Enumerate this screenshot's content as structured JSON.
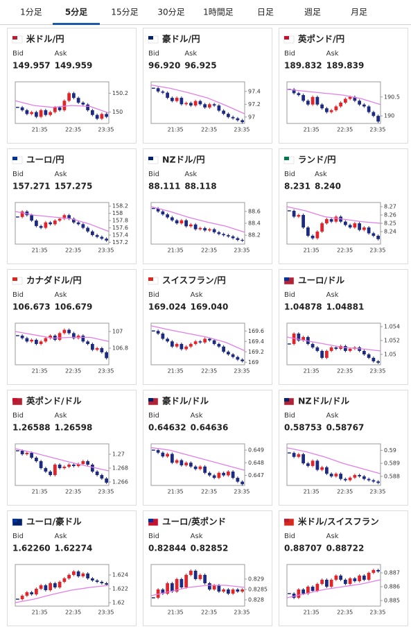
{
  "tabs": {
    "items": [
      "1分足",
      "5分足",
      "15分足",
      "30分足",
      "1時間足",
      "日足",
      "週足",
      "月足"
    ],
    "active": 1
  },
  "labels": {
    "bid": "Bid",
    "ask": "Ask"
  },
  "colors": {
    "up": "#e0252b",
    "down": "#1c2a80",
    "ma": "#e27ee8",
    "tab_active": "#1a5aa6"
  },
  "cards": [
    {
      "name": "米ドル/円",
      "color": "#6b2c91",
      "flag": [
        "#b22234",
        "#ffffff"
      ],
      "bid": "149.957",
      "ask": "149.959",
      "xlabels": [
        "21:35",
        "22:35",
        "23:35"
      ],
      "ylim": [
        149.88,
        150.32
      ],
      "yticks": [
        150,
        150.2
      ],
      "closes": [
        150.05,
        150.02,
        149.98,
        150.0,
        149.95,
        150.02,
        149.97,
        150.0,
        150.05,
        150.02,
        150.12,
        150.2,
        150.15,
        150.1,
        150.08,
        150.02,
        149.97,
        149.93,
        149.98,
        149.95
      ],
      "ma": [
        150.12,
        150.07,
        150.05,
        150.07,
        150.06,
        149.99
      ]
    },
    {
      "name": "豪ドル/円",
      "color": "#6b2c91",
      "flag": [
        "#012169",
        "#ffffff"
      ],
      "bid": "96.920",
      "ask": "96.925",
      "xlabels": [
        "21:35",
        "22:35",
        "23:35"
      ],
      "ylim": [
        96.9,
        97.55
      ],
      "yticks": [
        97,
        97.2,
        97.4
      ],
      "closes": [
        97.45,
        97.4,
        97.38,
        97.3,
        97.25,
        97.3,
        97.2,
        97.22,
        97.18,
        97.25,
        97.2,
        97.15,
        97.2,
        97.18,
        97.1,
        97.05,
        97.0,
        96.98,
        96.95,
        96.92
      ],
      "ma": [
        97.5,
        97.45,
        97.38,
        97.3,
        97.18,
        97.05
      ]
    },
    {
      "name": "英ポンド/円",
      "color": "#6b2c91",
      "flag": [
        "#c8102e",
        "#ffffff"
      ],
      "bid": "189.832",
      "ask": "189.839",
      "xlabels": [
        "21:35",
        "22:35",
        "23:35"
      ],
      "ylim": [
        189.8,
        190.9
      ],
      "yticks": [
        190,
        190.5
      ],
      "closes": [
        190.7,
        190.6,
        190.55,
        190.4,
        190.3,
        190.5,
        190.3,
        190.2,
        190.1,
        190.15,
        190.25,
        190.35,
        190.45,
        190.5,
        190.4,
        190.3,
        190.25,
        190.1,
        190.0,
        189.85
      ],
      "ma": [
        190.7,
        190.65,
        190.6,
        190.55,
        190.45,
        190.3
      ]
    },
    {
      "name": "ユーロ/円",
      "color": "#6b2c91",
      "flag": [
        "#003399",
        "#ffffff"
      ],
      "bid": "157.271",
      "ask": "157.275",
      "xlabels": [
        "21:35",
        "22:35",
        "23:35"
      ],
      "ylim": [
        157.15,
        158.3
      ],
      "yticks": [
        157.2,
        157.4,
        157.6,
        157.8,
        158,
        158.2
      ],
      "closes": [
        157.9,
        158.05,
        157.95,
        157.8,
        157.65,
        157.6,
        157.75,
        157.7,
        157.8,
        157.85,
        157.95,
        157.85,
        157.75,
        157.7,
        157.6,
        157.5,
        157.4,
        157.35,
        157.3,
        157.25
      ],
      "ma": [
        158.05,
        157.95,
        157.9,
        157.85,
        157.7,
        157.5
      ]
    },
    {
      "name": "NZドル/円",
      "color": "#6b2c91",
      "flag": [
        "#012169",
        "#ffffff"
      ],
      "bid": "88.111",
      "ask": "88.118",
      "xlabels": [
        "21:35",
        "22:35",
        "23:35"
      ],
      "ylim": [
        88.05,
        88.75
      ],
      "yticks": [
        88.2,
        88.4,
        88.6
      ],
      "closes": [
        88.65,
        88.6,
        88.55,
        88.5,
        88.45,
        88.4,
        88.45,
        88.35,
        88.38,
        88.3,
        88.32,
        88.28,
        88.3,
        88.25,
        88.22,
        88.2,
        88.18,
        88.15,
        88.12,
        88.11
      ],
      "ma": [
        88.68,
        88.6,
        88.5,
        88.42,
        88.35,
        88.25
      ]
    },
    {
      "name": "ランド/円",
      "color": "#6b2c91",
      "flag": [
        "#007a4d",
        "#ffffff"
      ],
      "bid": "8.231",
      "ask": "8.240",
      "xlabels": [
        "21:35",
        "22:35",
        "23:35"
      ],
      "ylim": [
        8.225,
        8.275
      ],
      "yticks": [
        8.24,
        8.25,
        8.26,
        8.27
      ],
      "closes": [
        8.265,
        8.258,
        8.26,
        8.245,
        8.235,
        8.232,
        8.24,
        8.25,
        8.255,
        8.252,
        8.258,
        8.252,
        8.248,
        8.245,
        8.25,
        8.242,
        8.245,
        8.238,
        8.235,
        8.231
      ],
      "ma": [
        8.27,
        8.265,
        8.258,
        8.255,
        8.252,
        8.25
      ]
    },
    {
      "name": "カナダドル/円",
      "color": "#6b2c91",
      "flag": [
        "#d52b1e",
        "#ffffff"
      ],
      "bid": "106.673",
      "ask": "106.679",
      "xlabels": [
        "21:35",
        "22:35",
        "23:35"
      ],
      "ylim": [
        106.6,
        107.1
      ],
      "yticks": [
        106.8,
        107
      ],
      "closes": [
        106.95,
        106.92,
        106.88,
        106.9,
        106.85,
        106.88,
        106.92,
        106.95,
        106.9,
        106.98,
        107.02,
        106.98,
        106.92,
        106.95,
        106.88,
        106.85,
        106.78,
        106.8,
        106.75,
        106.68
      ],
      "ma": [
        107.0,
        106.96,
        106.92,
        106.93,
        106.93,
        106.88
      ]
    },
    {
      "name": "スイスフラン/円",
      "color": "#6b2c91",
      "flag": [
        "#da291c",
        "#ffffff"
      ],
      "bid": "169.024",
      "ask": "169.040",
      "xlabels": [
        "21:35",
        "22:35",
        "23:35"
      ],
      "ylim": [
        168.95,
        169.75
      ],
      "yticks": [
        169,
        169.2,
        169.4,
        169.6
      ],
      "closes": [
        169.6,
        169.55,
        169.45,
        169.4,
        169.3,
        169.35,
        169.25,
        169.3,
        169.35,
        169.4,
        169.38,
        169.45,
        169.42,
        169.35,
        169.3,
        169.2,
        169.15,
        169.1,
        169.05,
        169.02
      ],
      "ma": [
        169.7,
        169.62,
        169.55,
        169.48,
        169.38,
        169.22
      ]
    },
    {
      "name": "ユーロ/ドル",
      "color": "#3b3a8f",
      "flag": [
        "#003399",
        "#b22234"
      ],
      "bid": "1.04878",
      "ask": "1.04881",
      "xlabels": [
        "21:35",
        "22:35",
        "23:35"
      ],
      "ylim": [
        1.0485,
        1.0545
      ],
      "yticks": [
        1.05,
        1.052,
        1.054
      ],
      "closes": [
        1.0515,
        1.053,
        1.052,
        1.0525,
        1.0515,
        1.051,
        1.0505,
        1.0495,
        1.0505,
        1.051,
        1.0508,
        1.0512,
        1.0505,
        1.0508,
        1.051,
        1.0505,
        1.05,
        1.0495,
        1.049,
        1.0488
      ],
      "ma": [
        1.0525,
        1.052,
        1.0515,
        1.051,
        1.0508,
        1.0505
      ]
    },
    {
      "name": "英ポンド/ドル",
      "color": "#3b3a8f",
      "flag": [
        "#c8102e",
        "#b22234"
      ],
      "bid": "1.26588",
      "ask": "1.26598",
      "xlabels": [
        "21:35",
        "22:35",
        "23:35"
      ],
      "ylim": [
        1.2655,
        1.2715
      ],
      "yticks": [
        1.266,
        1.268,
        1.27
      ],
      "closes": [
        1.2705,
        1.27,
        1.2702,
        1.2695,
        1.269,
        1.268,
        1.2675,
        1.267,
        1.2685,
        1.268,
        1.2682,
        1.2685,
        1.2683,
        1.2686,
        1.269,
        1.2685,
        1.2675,
        1.267,
        1.2665,
        1.2659
      ],
      "ma": [
        1.2708,
        1.2702,
        1.2695,
        1.2688,
        1.2682,
        1.2676
      ]
    },
    {
      "name": "豪ドル/ドル",
      "color": "#3b3a8f",
      "flag": [
        "#012169",
        "#b22234"
      ],
      "bid": "0.64632",
      "ask": "0.64636",
      "xlabels": [
        "21:35",
        "22:35",
        "23:35"
      ],
      "ylim": [
        0.6462,
        0.6495
      ],
      "yticks": [
        0.647,
        0.648,
        0.649
      ],
      "closes": [
        0.649,
        0.6488,
        0.6485,
        0.6487,
        0.648,
        0.6482,
        0.6478,
        0.648,
        0.6477,
        0.6475,
        0.6477,
        0.6472,
        0.647,
        0.6468,
        0.6472,
        0.647,
        0.6473,
        0.6468,
        0.6465,
        0.6463
      ],
      "ma": [
        0.6492,
        0.649,
        0.6486,
        0.6482,
        0.6478,
        0.6474
      ]
    },
    {
      "name": "NZドル/ドル",
      "color": "#3b3a8f",
      "flag": [
        "#012169",
        "#b22234"
      ],
      "bid": "0.58753",
      "ask": "0.58767",
      "xlabels": [
        "21:35",
        "22:35",
        "23:35"
      ],
      "ylim": [
        0.5873,
        0.5905
      ],
      "yticks": [
        0.588,
        0.589,
        0.59
      ],
      "closes": [
        0.5898,
        0.5895,
        0.5897,
        0.589,
        0.5888,
        0.5892,
        0.5885,
        0.5887,
        0.5882,
        0.588,
        0.5882,
        0.5878,
        0.5877,
        0.5879,
        0.5881,
        0.588,
        0.5878,
        0.5877,
        0.5876,
        0.5875
      ],
      "ma": [
        0.5902,
        0.5899,
        0.5895,
        0.589,
        0.5886,
        0.5882
      ]
    },
    {
      "name": "ユーロ/豪ドル",
      "color": "#1a5aa6",
      "flag": [
        "#003399",
        "#012169"
      ],
      "bid": "1.62260",
      "ask": "1.62274",
      "xlabels": [
        "21:35",
        "22:35",
        "23:35"
      ],
      "ylim": [
        1.6195,
        1.6255
      ],
      "yticks": [
        1.62,
        1.622,
        1.624
      ],
      "closes": [
        1.6205,
        1.621,
        1.6215,
        1.6212,
        1.622,
        1.6225,
        1.6218,
        1.6228,
        1.6222,
        1.623,
        1.6235,
        1.624,
        1.6245,
        1.6238,
        1.6242,
        1.6235,
        1.6232,
        1.623,
        1.6228,
        1.6226
      ],
      "ma": [
        1.62,
        1.6205,
        1.6212,
        1.6218,
        1.6222,
        1.6225
      ]
    },
    {
      "name": "ユーロ/英ポンド",
      "color": "#1a5aa6",
      "flag": [
        "#003399",
        "#c8102e"
      ],
      "bid": "0.82844",
      "ask": "0.82852",
      "xlabels": [
        "21:35",
        "22:35",
        "23:35"
      ],
      "ylim": [
        0.8277,
        0.8297
      ],
      "yticks": [
        0.828,
        0.8285,
        0.829
      ],
      "closes": [
        0.8281,
        0.8285,
        0.8283,
        0.8288,
        0.8284,
        0.829,
        0.8286,
        0.8292,
        0.8294,
        0.829,
        0.8292,
        0.8288,
        0.8285,
        0.8287,
        0.8284,
        0.8285,
        0.8283,
        0.8285,
        0.8284,
        0.8285
      ],
      "ma": [
        0.8282,
        0.8284,
        0.8286,
        0.8287,
        0.8287,
        0.8286
      ]
    },
    {
      "name": "米ドル/スイスフラン",
      "color": "#1a5aa6",
      "flag": [
        "#b22234",
        "#da291c"
      ],
      "bid": "0.88707",
      "ask": "0.88722",
      "xlabels": [
        "21:35",
        "22:35",
        "23:35"
      ],
      "ylim": [
        0.8846,
        0.8876
      ],
      "yticks": [
        0.885,
        0.886,
        0.887
      ],
      "closes": [
        0.8855,
        0.8852,
        0.8858,
        0.8855,
        0.886,
        0.8857,
        0.8862,
        0.8865,
        0.886,
        0.8865,
        0.8868,
        0.8865,
        0.8862,
        0.8866,
        0.8864,
        0.8868,
        0.8865,
        0.887,
        0.8872,
        0.8871
      ],
      "ma": [
        0.8852,
        0.8855,
        0.8858,
        0.886,
        0.8862,
        0.8865
      ]
    }
  ]
}
